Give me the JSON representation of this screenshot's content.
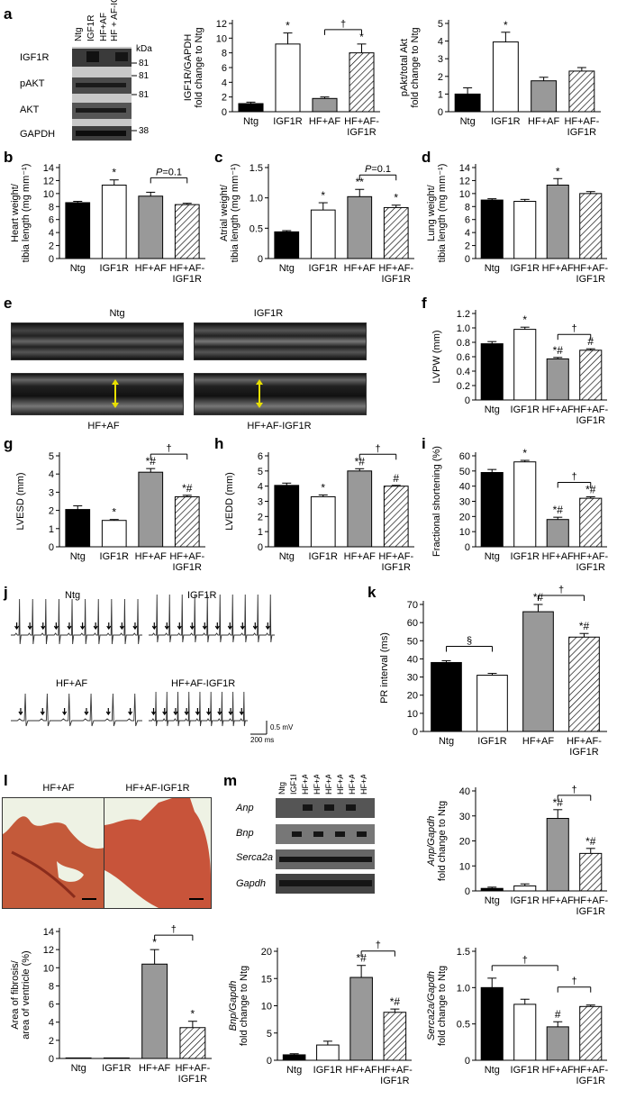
{
  "figure": {
    "panel_letters": [
      "a",
      "b",
      "c",
      "d",
      "e",
      "f",
      "g",
      "h",
      "i",
      "j",
      "k",
      "l",
      "m"
    ]
  },
  "panel_a_blot": {
    "lanes": [
      "Ntg",
      "IGF1R",
      "HF+AF",
      "HF + AF-IGF1R"
    ],
    "rows": [
      "IGF1R",
      "pAKT",
      "AKT",
      "GAPDH"
    ],
    "kda_header": "kDa",
    "kda": [
      "81",
      "81",
      "81",
      "38"
    ]
  },
  "panel_e": {
    "labels": [
      "Ntg",
      "IGF1R",
      "HF+AF",
      "HF+AF-IGF1R"
    ]
  },
  "panel_j": {
    "labels": [
      "Ntg",
      "IGF1R",
      "HF+AF",
      "HF+AF-IGF1R"
    ],
    "scale_mv": "0.5 mV",
    "scale_ms": "200 ms"
  },
  "panel_l": {
    "labels": [
      "HF+AF",
      "HF+AF-IGF1R"
    ]
  },
  "panel_m_blot": {
    "lanes": [
      "Ntg",
      "IGF1R",
      "HF+AF",
      "HF+AF-IGF1R",
      "HF+AF",
      "HF+AF-IGF1R",
      "HF+AF",
      "HF+AF-IGF1R"
    ],
    "rows": [
      "Anp",
      "Bnp",
      "Serca2a",
      "Gapdh"
    ]
  },
  "chart_data": [
    {
      "id": "a2",
      "letter": "",
      "type": "bar",
      "ylabel": [
        "IGF1R/GAPDH",
        "fold change to Ntg"
      ],
      "categories": [
        "Ntg",
        "IGF1R",
        "HF+AF",
        "HF+AF-IGF1R"
      ],
      "values": [
        1.1,
        9.2,
        1.8,
        8.0
      ],
      "errors": [
        0.2,
        1.5,
        0.2,
        1.2
      ],
      "ylim": [
        0,
        12
      ],
      "yticks": [
        "0",
        "2",
        "4",
        "6",
        "8",
        "10",
        "12"
      ],
      "sig": [
        "",
        "*",
        "",
        "*"
      ],
      "brackets": [
        {
          "from": 2,
          "to": 3,
          "text": "†"
        }
      ]
    },
    {
      "id": "a3",
      "letter": "",
      "type": "bar",
      "ylabel": [
        "pAkt/total Akt",
        "fold change to Ntg"
      ],
      "categories": [
        "Ntg",
        "IGF1R",
        "HF+AF",
        "HF+AF-IGF1R"
      ],
      "values": [
        1.0,
        3.95,
        1.75,
        2.3
      ],
      "errors": [
        0.35,
        0.55,
        0.2,
        0.2
      ],
      "ylim": [
        0,
        5
      ],
      "yticks": [
        "0",
        "1",
        "2",
        "3",
        "4",
        "5"
      ],
      "sig": [
        "",
        "*",
        "",
        ""
      ],
      "brackets": []
    },
    {
      "id": "b",
      "letter": "b",
      "type": "bar",
      "ylabel": [
        "Heart weight/",
        "tibia length (mg mm⁻¹)"
      ],
      "categories": [
        "Ntg",
        "IGF1R",
        "HF+AF",
        "HF+AF-IGF1R"
      ],
      "values": [
        8.6,
        11.3,
        9.6,
        8.3
      ],
      "errors": [
        0.2,
        0.8,
        0.6,
        0.2
      ],
      "ylim": [
        0,
        14
      ],
      "yticks": [
        "0",
        "2",
        "4",
        "6",
        "8",
        "10",
        "12",
        "14"
      ],
      "sig": [
        "",
        "*",
        "",
        ""
      ],
      "brackets": [
        {
          "from": 2,
          "to": 3,
          "text": "P=0.1"
        }
      ]
    },
    {
      "id": "c",
      "letter": "c",
      "type": "bar",
      "ylabel": [
        "Atrial weight/",
        "tibia length (mg mm⁻¹)"
      ],
      "categories": [
        "Ntg",
        "IGF1R",
        "HF+AF",
        "HF+AF-IGF1R"
      ],
      "values": [
        0.44,
        0.8,
        1.02,
        0.84
      ],
      "errors": [
        0.02,
        0.12,
        0.12,
        0.04
      ],
      "ylim": [
        0,
        1.5
      ],
      "yticks": [
        "0",
        "0.5",
        "1.0",
        "1.5"
      ],
      "sig": [
        "",
        "*",
        "**",
        "*"
      ],
      "brackets": [
        {
          "from": 2,
          "to": 3,
          "text": "P=0.1"
        }
      ]
    },
    {
      "id": "d",
      "letter": "d",
      "type": "bar",
      "ylabel": [
        "Lung weight/",
        "tibia length (mg mm⁻¹)"
      ],
      "categories": [
        "Ntg",
        "IGF1R",
        "HF+AF",
        "HF+AF-IGF1R"
      ],
      "values": [
        9.0,
        8.8,
        11.3,
        10.0
      ],
      "errors": [
        0.2,
        0.3,
        1.0,
        0.3
      ],
      "ylim": [
        0,
        14
      ],
      "yticks": [
        "0",
        "2",
        "4",
        "6",
        "8",
        "10",
        "12",
        "14"
      ],
      "sig": [
        "",
        "",
        "*",
        ""
      ],
      "brackets": []
    },
    {
      "id": "f",
      "letter": "f",
      "type": "bar",
      "ylabel": [
        "LVPW (mm)"
      ],
      "categories": [
        "Ntg",
        "IGF1R",
        "HF+AF",
        "HF+AF-IGF1R"
      ],
      "values": [
        0.78,
        0.98,
        0.57,
        0.69
      ],
      "errors": [
        0.03,
        0.03,
        0.02,
        0.02
      ],
      "ylim": [
        0,
        1.2
      ],
      "yticks": [
        "0",
        "0.2",
        "0.4",
        "0.6",
        "0.8",
        "1.0",
        "1.2"
      ],
      "sig": [
        "",
        "*",
        "*#",
        "#"
      ],
      "brackets": [
        {
          "from": 2,
          "to": 3,
          "text": "†"
        }
      ]
    },
    {
      "id": "g",
      "letter": "g",
      "type": "bar",
      "ylabel": [
        "LVESD (mm)"
      ],
      "categories": [
        "Ntg",
        "IGF1R",
        "HF+AF",
        "HF+AF-IGF1R"
      ],
      "values": [
        2.05,
        1.45,
        4.1,
        2.75
      ],
      "errors": [
        0.2,
        0.05,
        0.2,
        0.08
      ],
      "ylim": [
        0,
        5
      ],
      "yticks": [
        "0",
        "1",
        "2",
        "3",
        "4",
        "5"
      ],
      "sig": [
        "",
        "*",
        "*#",
        "*#"
      ],
      "brackets": [
        {
          "from": 2,
          "to": 3,
          "text": "†"
        }
      ]
    },
    {
      "id": "h",
      "letter": "h",
      "type": "bar",
      "ylabel": [
        "LVEDD (mm)"
      ],
      "categories": [
        "Ntg",
        "IGF1R",
        "HF+AF",
        "HF+AF-IGF1R"
      ],
      "values": [
        4.05,
        3.3,
        5.0,
        4.0
      ],
      "errors": [
        0.15,
        0.12,
        0.15,
        0.05
      ],
      "ylim": [
        0,
        6
      ],
      "yticks": [
        "0",
        "1",
        "2",
        "3",
        "4",
        "5",
        "6"
      ],
      "sig": [
        "",
        "*",
        "*#",
        "#"
      ],
      "brackets": [
        {
          "from": 2,
          "to": 3,
          "text": "†"
        }
      ]
    },
    {
      "id": "i",
      "letter": "i",
      "type": "bar",
      "ylabel": [
        "Fractional shortening (%)"
      ],
      "categories": [
        "Ntg",
        "IGF1R",
        "HF+AF",
        "HF+AF-IGF1R"
      ],
      "values": [
        49,
        56,
        18,
        32
      ],
      "errors": [
        2,
        1,
        1.5,
        1
      ],
      "ylim": [
        0,
        60
      ],
      "yticks": [
        "0",
        "10",
        "20",
        "30",
        "40",
        "50",
        "60"
      ],
      "sig": [
        "",
        "*",
        "*#",
        "*#"
      ],
      "brackets": [
        {
          "from": 2,
          "to": 3,
          "text": "†"
        }
      ]
    },
    {
      "id": "k",
      "letter": "k",
      "type": "bar",
      "ylabel": [
        "PR interval (ms)"
      ],
      "categories": [
        "Ntg",
        "IGF1R",
        "HF+AF",
        "HF+AF-IGF1R"
      ],
      "values": [
        38,
        31,
        66,
        52
      ],
      "errors": [
        1,
        1,
        4,
        2
      ],
      "ylim": [
        0,
        70
      ],
      "yticks": [
        "0",
        "10",
        "20",
        "30",
        "40",
        "50",
        "60",
        "70"
      ],
      "sig": [
        "",
        "",
        "*#",
        "*#"
      ],
      "brackets": [
        {
          "from": 0,
          "to": 1,
          "text": "§"
        },
        {
          "from": 2,
          "to": 3,
          "text": "†"
        }
      ]
    },
    {
      "id": "l2",
      "letter": "",
      "type": "bar",
      "ylabel": [
        "Area of fibrosis/",
        "area of ventricle (%)"
      ],
      "categories": [
        "Ntg",
        "IGF1R",
        "HF+AF",
        "HF+AF-IGF1R"
      ],
      "values": [
        0.05,
        0.05,
        10.4,
        3.4
      ],
      "errors": [
        0,
        0,
        1.6,
        0.7
      ],
      "ylim": [
        0,
        14
      ],
      "yticks": [
        "0",
        "2",
        "4",
        "6",
        "8",
        "10",
        "12",
        "14"
      ],
      "sig": [
        "",
        "",
        "*",
        "*"
      ],
      "brackets": [
        {
          "from": 2,
          "to": 3,
          "text": "†"
        }
      ]
    },
    {
      "id": "m2",
      "letter": "",
      "type": "bar",
      "ylabel": [
        "Anp/Gapdh",
        "fold change to Ntg"
      ],
      "categories": [
        "Ntg",
        "IGF1R",
        "HF+AF",
        "HF+AF-IGF1R"
      ],
      "values": [
        1.0,
        2.0,
        29,
        15
      ],
      "errors": [
        0.5,
        0.8,
        3.5,
        2
      ],
      "ylim": [
        0,
        40
      ],
      "yticks": [
        "0",
        "10",
        "20",
        "30",
        "40"
      ],
      "sig": [
        "",
        "",
        "*#",
        "*#"
      ],
      "brackets": [
        {
          "from": 2,
          "to": 3,
          "text": "†"
        }
      ]
    },
    {
      "id": "m3",
      "letter": "",
      "type": "bar",
      "ylabel": [
        "Bnp/Gapdh",
        "fold change to Ntg"
      ],
      "categories": [
        "Ntg",
        "IGF1R",
        "HF+AF",
        "HF+AF-IGF1R"
      ],
      "values": [
        1.0,
        2.8,
        15.2,
        8.8
      ],
      "errors": [
        0.2,
        0.7,
        2.2,
        0.6
      ],
      "ylim": [
        0,
        20
      ],
      "yticks": [
        "0",
        "5",
        "10",
        "15",
        "20"
      ],
      "sig": [
        "",
        "",
        "*#",
        "*#"
      ],
      "brackets": [
        {
          "from": 2,
          "to": 3,
          "text": "†"
        }
      ]
    },
    {
      "id": "m4",
      "letter": "",
      "type": "bar",
      "ylabel": [
        "Serca2a/Gapdh",
        "fold change to Ntg"
      ],
      "categories": [
        "Ntg",
        "IGF1R",
        "HF+AF",
        "HF+AF-IGF1R"
      ],
      "values": [
        1.0,
        0.77,
        0.46,
        0.74
      ],
      "errors": [
        0.13,
        0.07,
        0.07,
        0.02
      ],
      "ylim": [
        0,
        1.5
      ],
      "yticks": [
        "0",
        "0.5",
        "1.0",
        "1.5"
      ],
      "sig": [
        "",
        "",
        "#",
        ""
      ],
      "brackets": [
        {
          "from": 0,
          "to": 2,
          "text": "†"
        },
        {
          "from": 2,
          "to": 3,
          "text": "†"
        }
      ]
    }
  ]
}
